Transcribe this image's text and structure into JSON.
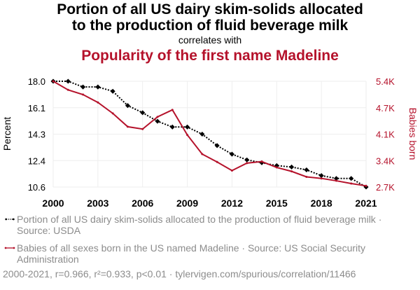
{
  "title_line1": "Portion of all US dairy skim-solids allocated",
  "title_line2": "to the production of fluid beverage milk",
  "correlates": "correlates with",
  "title2": "Popularity of the first name Madeline",
  "colors": {
    "series1": "#000000",
    "series2": "#b5122b",
    "grid": "#eeeeee"
  },
  "legend": {
    "series1": "Portion of all US dairy skim-solids allocated to the production of fluid beverage milk · Source: USDA",
    "series2": "Babies of all sexes born in the US named Madeline · Source: US Social Security Administration"
  },
  "footer": "2000-2021, r=0.966, r²=0.933, p<0.01 · tylervigen.com/spurious/correlation/11466",
  "chart_data": {
    "type": "line",
    "x": [
      2000,
      2001,
      2002,
      2003,
      2004,
      2005,
      2006,
      2007,
      2008,
      2009,
      2010,
      2011,
      2012,
      2013,
      2014,
      2015,
      2016,
      2017,
      2018,
      2019,
      2020,
      2021
    ],
    "x_ticks": [
      "2000",
      "2003",
      "2006",
      "2009",
      "2012",
      "2015",
      "2018",
      "2021"
    ],
    "y_left_label": "Percent",
    "y_left_ticks": [
      "18.0",
      "16.1",
      "14.3",
      "12.4",
      "10.6"
    ],
    "y_left_range": [
      10.6,
      18.0
    ],
    "y_right_label": "Babies born",
    "y_right_ticks": [
      "5.4K",
      "4.7K",
      "4.1K",
      "3.4K",
      "2.7K"
    ],
    "y_right_range": [
      2700,
      5400
    ],
    "grid": true,
    "series": [
      {
        "name": "Portion of all US dairy skim-solids allocated to the production of fluid beverage milk",
        "axis": "left",
        "style": "dotted-with-markers",
        "values": [
          18.0,
          18.0,
          17.6,
          17.6,
          17.3,
          16.3,
          15.8,
          15.2,
          14.8,
          14.8,
          14.3,
          13.5,
          12.9,
          12.5,
          12.3,
          12.1,
          12.0,
          11.8,
          11.4,
          11.2,
          11.2,
          10.6
        ]
      },
      {
        "name": "Babies of all sexes born in the US named Madeline",
        "axis": "right",
        "style": "solid",
        "values": [
          5400,
          5180,
          5060,
          4860,
          4580,
          4240,
          4180,
          4490,
          4670,
          4030,
          3540,
          3340,
          3120,
          3310,
          3350,
          3200,
          3100,
          2960,
          2920,
          2860,
          2790,
          2730
        ]
      }
    ]
  }
}
